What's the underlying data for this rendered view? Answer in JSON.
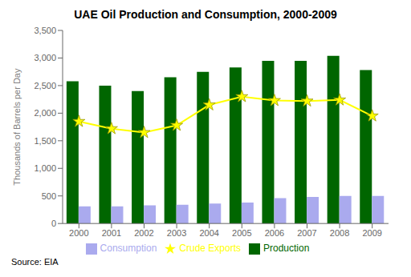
{
  "chart_data": {
    "type": "bar",
    "title": "UAE Oil Production and Consumption, 2000-2009",
    "categories": [
      "2000",
      "2001",
      "2002",
      "2003",
      "2004",
      "2005",
      "2006",
      "2007",
      "2008",
      "2009"
    ],
    "series": [
      {
        "name": "Production",
        "type": "bar",
        "color": "#006600",
        "values": [
          2580,
          2500,
          2400,
          2650,
          2750,
          2830,
          2950,
          2950,
          3040,
          2780
        ]
      },
      {
        "name": "Consumption",
        "type": "bar",
        "color": "#aaaaee",
        "values": [
          310,
          310,
          330,
          340,
          360,
          380,
          460,
          480,
          500,
          500
        ]
      },
      {
        "name": "Crude Exports",
        "type": "line",
        "color": "#ffff00",
        "marker": "star",
        "values": [
          1850,
          1720,
          1650,
          1780,
          2150,
          2300,
          2230,
          2220,
          2240,
          1950
        ]
      }
    ],
    "ylabel": "Thousands of Barrels per Day",
    "ylim": [
      0,
      3500
    ],
    "yticks": [
      0,
      500,
      {
        "value": 1000,
        "label": "1,000"
      },
      {
        "value": 1500,
        "label": "1,500"
      },
      {
        "value": 2000,
        "label": "2,000"
      },
      {
        "value": 2500,
        "label": "2,500"
      },
      {
        "value": 3000,
        "label": "3,000"
      },
      {
        "value": 3500,
        "label": "3,500"
      }
    ],
    "grid": false,
    "legend": "bottom",
    "annotations": [
      "Source: EIA"
    ]
  }
}
